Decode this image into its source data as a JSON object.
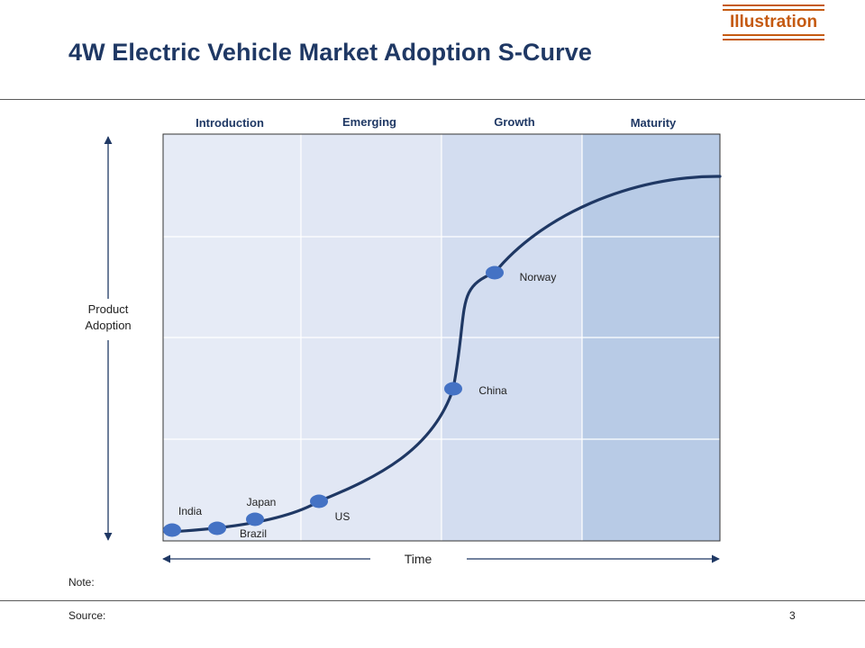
{
  "header": {
    "tag": "Illustration",
    "title": "4W Electric Vehicle Market Adoption S-Curve"
  },
  "diagram": {
    "stages": [
      "Introduction",
      "Emerging",
      "Growth",
      "Maturity"
    ],
    "y_axis_label": [
      "Product",
      "Adoption"
    ],
    "x_axis_label": "Time",
    "markers": [
      {
        "label": "India"
      },
      {
        "label": "Brazil"
      },
      {
        "label": "Japan"
      },
      {
        "label": "US"
      },
      {
        "label": "China"
      },
      {
        "label": "Norway"
      }
    ]
  },
  "footer": {
    "note": "Note:",
    "source": "Source:",
    "page_number": "3"
  },
  "colors": {
    "stage_fills": [
      "#e6ebf6",
      "#e1e7f4",
      "#d3ddf0",
      "#b8cbe6"
    ],
    "curve": "#1f3864",
    "marker": "#4472c4",
    "accent": "#c55a11"
  }
}
